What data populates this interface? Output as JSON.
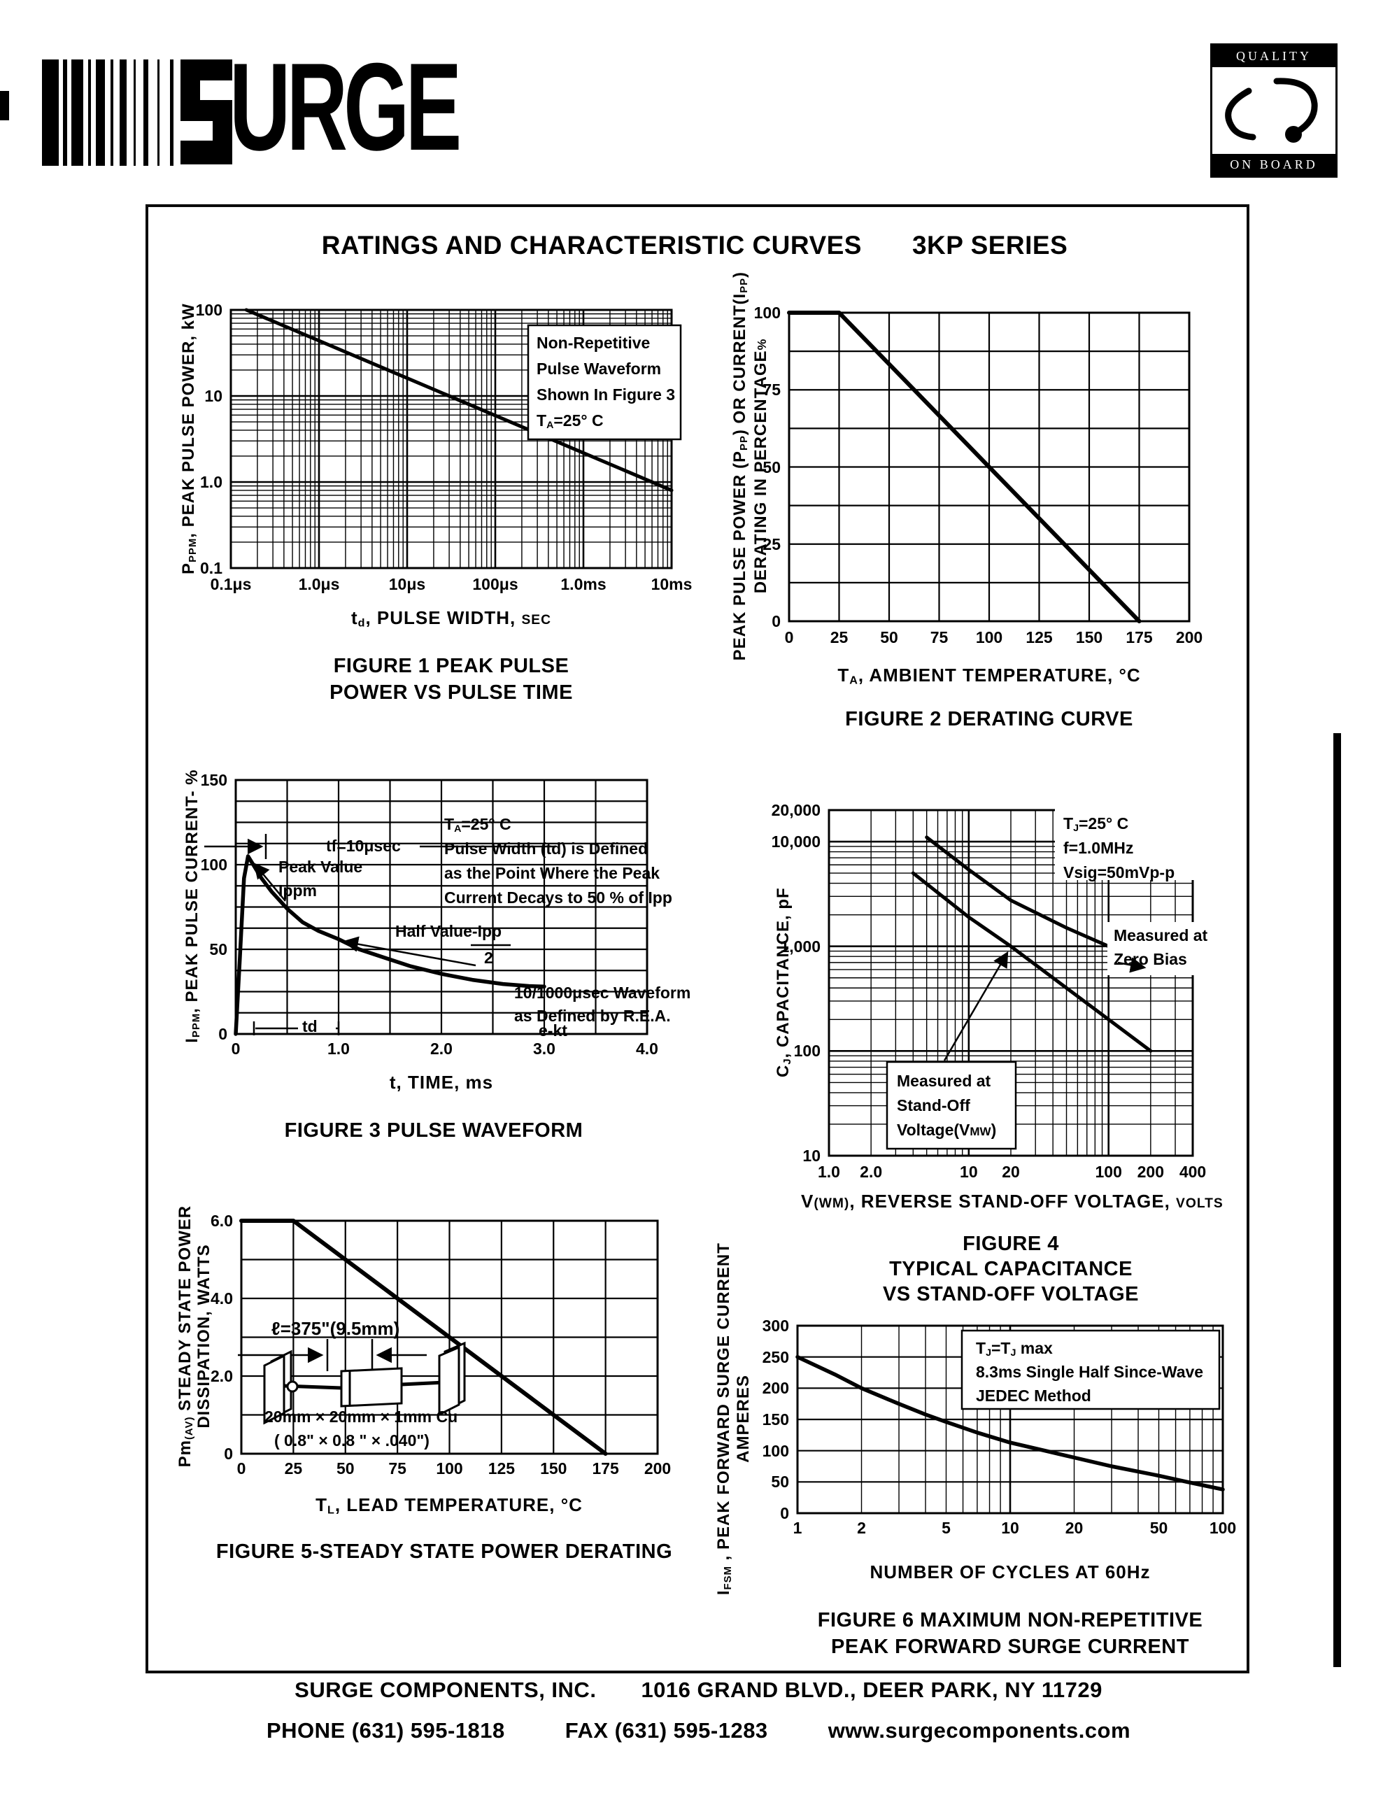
{
  "page": {
    "brand": {
      "logo_text": "URGE",
      "logo_mark": "striped-S"
    },
    "badge": {
      "top": "QUALITY",
      "bottom": "ON BOARD"
    },
    "title": {
      "main": "RATINGS AND CHARACTERISTIC CURVES",
      "series": "3KP SERIES"
    },
    "footer": {
      "company": "SURGE COMPONENTS, INC.",
      "address": "1016 GRAND BLVD., DEER PARK, NY  11729",
      "phone": "PHONE (631) 595-1818",
      "fax": "FAX  (631) 595-1283",
      "website": "www.surgecomponents.com"
    }
  },
  "chart_data": [
    {
      "figure": "Figure 1",
      "type": "line",
      "scales": "log-log",
      "caption": [
        "FIGURE 1 PEAK PULSE",
        "POWER VS PULSE TIME"
      ],
      "xlabel": "t~d~, PULSE  WIDTH, ^SEC^",
      "ylabel": "P~PPM~, PEAK  PULSE  POWER, kW",
      "xticks": [
        "0.1μs",
        "1.0μs",
        "10μs",
        "100μs",
        "1.0ms",
        "10ms"
      ],
      "xtick_values": [
        1e-07,
        1e-06,
        1e-05,
        0.0001,
        0.001,
        0.01
      ],
      "yticks": [
        "100",
        "10",
        "1.0",
        "0.1"
      ],
      "ytick_values": [
        100,
        10,
        1,
        0.1
      ],
      "xlim": [
        1e-07,
        0.01
      ],
      "ylim": [
        0.1,
        100
      ],
      "series": [
        {
          "name": "peak-pulse-power",
          "points": [
            [
              1.5e-07,
              100
            ],
            [
              0.01,
              0.8
            ]
          ]
        }
      ],
      "annotation": [
        "Non-Repetitive",
        "Pulse Waveform",
        "Shown In Figure 3",
        "T~A~=25° C"
      ]
    },
    {
      "figure": "Figure 2",
      "type": "line",
      "scales": "linear",
      "caption": [
        "FIGURE 2 DERATING CURVE"
      ],
      "xlabel": "T~A~, AMBIENT   TEMPERATURE, °C",
      "ylabel_lines": [
        "PEAK  PULSE  POWER (P~PP~) OR CURRENT(I~PP~)",
        "DERATING  IN  PERCENTAGE^%^"
      ],
      "xticks": [
        "0",
        "25",
        "50",
        "75",
        "100",
        "125",
        "150",
        "175",
        "200"
      ],
      "xtick_values": [
        0,
        25,
        50,
        75,
        100,
        125,
        150,
        175,
        200
      ],
      "yticks": [
        "100",
        "75",
        "50",
        "25",
        "0"
      ],
      "ytick_values": [
        100,
        75,
        50,
        25,
        0
      ],
      "xlim": [
        0,
        200
      ],
      "ylim": [
        0,
        100
      ],
      "series": [
        {
          "name": "derating",
          "points": [
            [
              0,
              100
            ],
            [
              25,
              100
            ],
            [
              175,
              0
            ]
          ]
        }
      ]
    },
    {
      "figure": "Figure 3",
      "type": "line",
      "scales": "linear",
      "caption": [
        "FIGURE 3  PULSE WAVEFORM"
      ],
      "xlabel": "t, TIME, ms",
      "ylabel": "I~PPM~, PEAK  PULSE  CURRENT- %",
      "xticks": [
        "0",
        "1.0",
        "2.0",
        "3.0",
        "4.0"
      ],
      "xtick_values": [
        0,
        1,
        2,
        3,
        4
      ],
      "yticks": [
        "150",
        "100",
        "50",
        "0"
      ],
      "ytick_values": [
        150,
        100,
        50,
        0
      ],
      "xlim": [
        0,
        4
      ],
      "ylim": [
        0,
        150
      ],
      "series": [
        {
          "name": "pulse-waveform",
          "points": [
            [
              0,
              0
            ],
            [
              0.04,
              45
            ],
            [
              0.08,
              92
            ],
            [
              0.12,
              105
            ],
            [
              0.18,
              99
            ],
            [
              0.25,
              92
            ],
            [
              0.35,
              84
            ],
            [
              0.5,
              74
            ],
            [
              0.65,
              66
            ],
            [
              0.8,
              61
            ],
            [
              1.0,
              56
            ],
            [
              1.2,
              50
            ],
            [
              1.45,
              45
            ],
            [
              1.7,
              40
            ],
            [
              2.0,
              35.5
            ],
            [
              2.3,
              32
            ],
            [
              2.6,
              29.5
            ],
            [
              2.85,
              28.3
            ],
            [
              3.0,
              28
            ]
          ]
        }
      ],
      "annotations": {
        "rise": "tf=10μsec",
        "peak": [
          "Peak Value",
          "Ippm"
        ],
        "definition": [
          "T~A~=25° C",
          "Pulse Width (td) is Defined",
          "as the Point Where the Peak",
          "Current Decays to 50 % of Ipp"
        ],
        "half": [
          "Half Value-Ipp",
          "2"
        ],
        "rea": [
          "10/1000μsec Waveform",
          "as Defined by R.E.A."
        ],
        "decay": "e-kt",
        "td": "td"
      }
    },
    {
      "figure": "Figure 4",
      "type": "line",
      "scales": "log-log",
      "caption": [
        "FIGURE 4",
        "TYPICAL CAPACITANCE",
        "VS STAND-OFF VOLTAGE"
      ],
      "xlabel": "V^(WM)^, REVERSE  STAND-OFF  VOLTAGE, ^VOLTS^",
      "ylabel": "C~J~, CAPACITANCE, pF",
      "xticks": [
        "1.0",
        "2.0",
        "10",
        "20",
        "100",
        "200",
        "400"
      ],
      "xtick_values": [
        1,
        2,
        10,
        20,
        100,
        200,
        400
      ],
      "yticks": [
        "20,000",
        "10,000",
        "1,000",
        "100",
        "10"
      ],
      "ytick_values": [
        20000,
        10000,
        1000,
        100,
        10
      ],
      "xlim": [
        1,
        400
      ],
      "ylim": [
        10,
        20000
      ],
      "series": [
        {
          "name": "zero-bias",
          "points": [
            [
              5,
              11000
            ],
            [
              10,
              5400
            ],
            [
              20,
              2750
            ],
            [
              50,
              1500
            ],
            [
              100,
              1000
            ],
            [
              200,
              600
            ]
          ]
        },
        {
          "name": "stand-off-voltage",
          "points": [
            [
              4,
              5000
            ],
            [
              10,
              1900
            ],
            [
              20,
              1000
            ],
            [
              50,
              400
            ],
            [
              100,
              200
            ],
            [
              200,
              100
            ]
          ]
        }
      ],
      "annotations": {
        "conditions": [
          "T~J~=25° C",
          "f=1.0MHz",
          "Vsig=50mVp-p"
        ],
        "zero_bias": [
          "Measured at",
          "Zero Bias"
        ],
        "standoff": [
          "Measured at",
          "Stand-Off",
          "Voltage(V^MW^)"
        ]
      }
    },
    {
      "figure": "Figure 5",
      "type": "line",
      "scales": "linear",
      "caption": [
        "FIGURE 5-STEADY STATE POWER DERATING"
      ],
      "xlabel": "T~L~, LEAD  TEMPERATURE, °C",
      "ylabel_lines": [
        "Pm~(AV)~ STEADY  STATE  POWER",
        "DISSIPATION, WATTS"
      ],
      "xticks": [
        "0",
        "25",
        "50",
        "75",
        "100",
        "125",
        "150",
        "175",
        "200"
      ],
      "xtick_values": [
        0,
        25,
        50,
        75,
        100,
        125,
        150,
        175,
        200
      ],
      "yticks": [
        "6.0",
        "4.0",
        "2.0",
        "0"
      ],
      "ytick_values": [
        6,
        4,
        2,
        0
      ],
      "xlim": [
        0,
        200
      ],
      "ylim": [
        0,
        6
      ],
      "series": [
        {
          "name": "steady-state-power",
          "points": [
            [
              0,
              6
            ],
            [
              25,
              6
            ],
            [
              175,
              0
            ]
          ]
        }
      ],
      "annotations": {
        "lead_length": "ℓ=375\"(9.5mm)",
        "heatsink": [
          "20mm × 20mm × 1mm Cu",
          "( 0.8\" × 0.8 \" × .040\")"
        ]
      }
    },
    {
      "figure": "Figure 6",
      "type": "line",
      "scales": "log-linear",
      "caption": [
        "FIGURE 6  MAXIMUM NON-REPETITIVE",
        "PEAK FORWARD SURGE CURRENT"
      ],
      "xlabel": "NUMBER  OF  CYCLES  AT  60Hz",
      "ylabel_lines": [
        "I~FSM~ , PEAK  FORWARD  SURGE  CURRENT",
        "AMPERES"
      ],
      "xticks": [
        "1",
        "2",
        "5",
        "10",
        "20",
        "50",
        "100"
      ],
      "xtick_values": [
        1,
        2,
        5,
        10,
        20,
        50,
        100
      ],
      "yticks": [
        "300",
        "250",
        "200",
        "150",
        "100",
        "50",
        "0"
      ],
      "ytick_values": [
        300,
        250,
        200,
        150,
        100,
        50,
        0
      ],
      "xlim": [
        1,
        100
      ],
      "ylim": [
        0,
        300
      ],
      "series": [
        {
          "name": "surge-current",
          "points": [
            [
              1,
              250
            ],
            [
              1.5,
              222
            ],
            [
              2,
              200
            ],
            [
              3,
              175
            ],
            [
              4,
              158
            ],
            [
              5,
              146
            ],
            [
              7,
              129
            ],
            [
              10,
              113
            ],
            [
              15,
              99
            ],
            [
              20,
              89
            ],
            [
              30,
              75
            ],
            [
              50,
              60
            ],
            [
              70,
              49
            ],
            [
              100,
              38
            ]
          ]
        }
      ],
      "annotations": {
        "conditions": [
          "T~J~=T~J~ max",
          "8.3ms Single Half Since-Wave",
          "JEDEC Method"
        ]
      }
    }
  ]
}
